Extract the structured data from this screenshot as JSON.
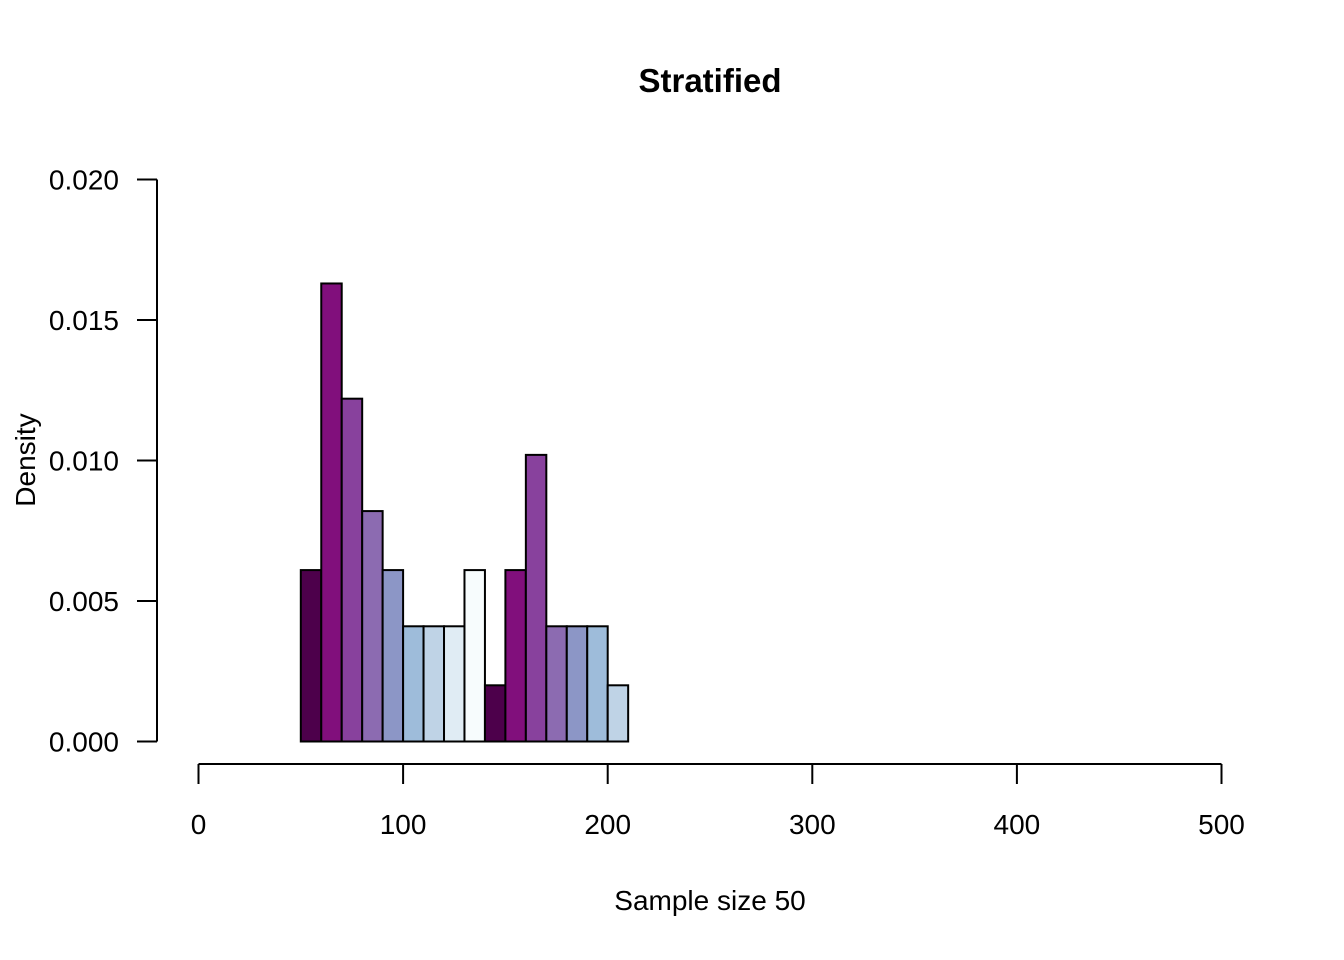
{
  "chart_data": {
    "type": "bar",
    "title": "Stratified",
    "xlabel": "Sample size 50",
    "ylabel": "Density",
    "xlim": [
      0,
      500
    ],
    "ylim": [
      0,
      0.02
    ],
    "xticks": [
      "0",
      "100",
      "200",
      "300",
      "400",
      "500"
    ],
    "yticks": [
      "0.000",
      "0.005",
      "0.010",
      "0.015",
      "0.020"
    ],
    "grid": false,
    "legend": "none",
    "bin_width": 10,
    "bins": [
      {
        "x0": 50,
        "x1": 60,
        "density": 0.0061,
        "color": "#4D004B"
      },
      {
        "x0": 60,
        "x1": 70,
        "density": 0.0163,
        "color": "#810F7C"
      },
      {
        "x0": 70,
        "x1": 80,
        "density": 0.0122,
        "color": "#88419D"
      },
      {
        "x0": 80,
        "x1": 90,
        "density": 0.0082,
        "color": "#8C6BB1"
      },
      {
        "x0": 90,
        "x1": 100,
        "density": 0.0061,
        "color": "#8C96C6"
      },
      {
        "x0": 100,
        "x1": 110,
        "density": 0.0041,
        "color": "#9EBCDA"
      },
      {
        "x0": 110,
        "x1": 120,
        "density": 0.0041,
        "color": "#BFD3E6"
      },
      {
        "x0": 120,
        "x1": 130,
        "density": 0.0041,
        "color": "#E0ECF4"
      },
      {
        "x0": 130,
        "x1": 140,
        "density": 0.0061,
        "color": "#F7FCFD"
      },
      {
        "x0": 140,
        "x1": 150,
        "density": 0.002,
        "color": "#4D004B"
      },
      {
        "x0": 150,
        "x1": 160,
        "density": 0.0061,
        "color": "#810F7C"
      },
      {
        "x0": 160,
        "x1": 170,
        "density": 0.0102,
        "color": "#88419D"
      },
      {
        "x0": 170,
        "x1": 180,
        "density": 0.0041,
        "color": "#8C6BB1"
      },
      {
        "x0": 180,
        "x1": 190,
        "density": 0.0041,
        "color": "#8C96C6"
      },
      {
        "x0": 190,
        "x1": 200,
        "density": 0.0041,
        "color": "#9EBCDA"
      },
      {
        "x0": 200,
        "x1": 210,
        "density": 0.002,
        "color": "#BFD3E6"
      }
    ],
    "colors": {
      "axis": "#000000",
      "bar_border": "#000000",
      "background": "#FFFFFF"
    }
  }
}
